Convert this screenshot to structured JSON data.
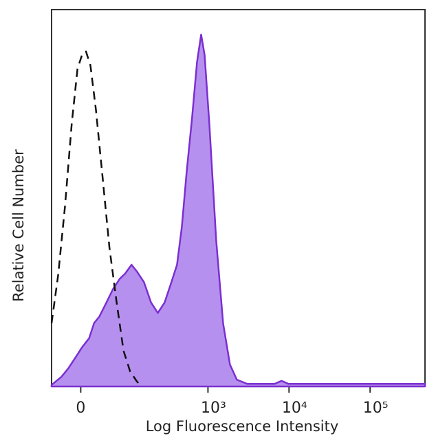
{
  "chart_data": {
    "type": "area",
    "x_label": "Log Fluorescence Intensity",
    "y_label": "Relative Cell Number",
    "xscale": "asinh",
    "xlim": [
      -50,
      475000
    ],
    "ylim": [
      0,
      100
    ],
    "xticks": [
      0,
      {
        "value": 1000,
        "label": "10³"
      },
      {
        "value": 10000,
        "label": "10⁴"
      },
      {
        "value": 100000,
        "label": "10⁵"
      }
    ],
    "series": [
      {
        "color": "#7b2fd0",
        "fill": "#b690ee",
        "dash": "solid",
        "x": [
          -50,
          -31,
          -19,
          -8,
          2,
          13,
          21,
          30,
          43,
          57,
          73,
          87,
          108,
          128,
          158,
          195,
          238,
          290,
          353,
          414,
          475,
          545,
          638,
          732,
          824,
          908,
          1040,
          1265,
          1538,
          1870,
          2270,
          3050,
          6640,
          8090,
          9830,
          475000
        ],
        "values": [
          0.4,
          2.6,
          4.9,
          7.7,
          10.4,
          12.8,
          16.8,
          18.6,
          22.3,
          25.9,
          28.6,
          29.9,
          32.3,
          30.5,
          27.7,
          22.3,
          19.5,
          22.3,
          27.7,
          32.3,
          42.3,
          56.9,
          71.5,
          86.1,
          93.4,
          88.0,
          69.7,
          38.7,
          16.8,
          5.8,
          1.8,
          0.7,
          0.7,
          1.5,
          0.7,
          0.7
        ]
      },
      {
        "color": "#111111",
        "fill": "none",
        "dash": "dashed",
        "x": [
          -50,
          -37,
          -25,
          -14,
          -5,
          2,
          8,
          15,
          24,
          36,
          49,
          65,
          83,
          103,
          128,
          142
        ],
        "values": [
          16.8,
          29.6,
          47.8,
          69.7,
          84.3,
          88.0,
          88.9,
          85.2,
          73.4,
          55.1,
          36.9,
          22.3,
          9.5,
          4.0,
          1.3,
          0.4
        ]
      }
    ]
  }
}
